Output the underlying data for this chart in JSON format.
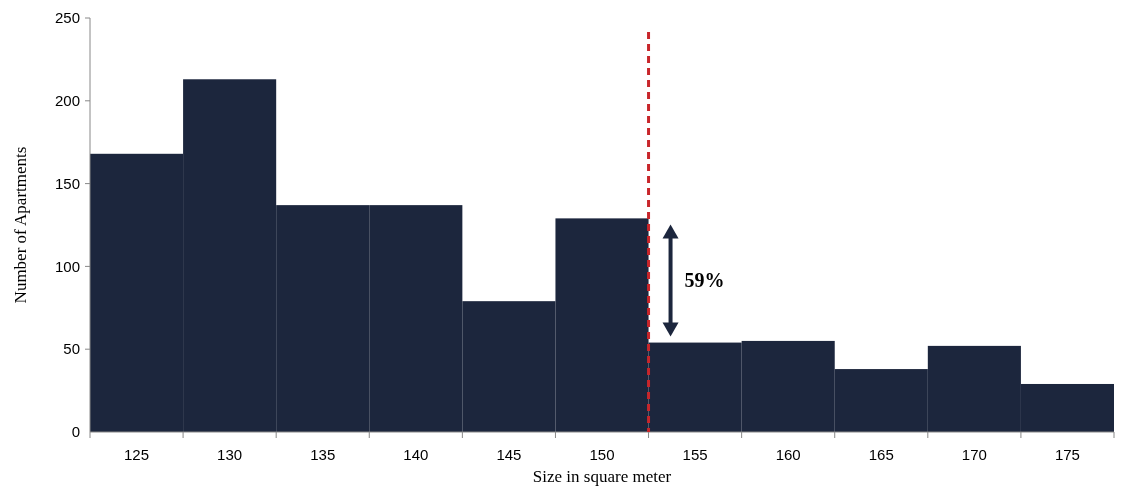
{
  "chart_data": {
    "type": "histogram",
    "xlabel": "Size in square meter",
    "ylabel": "Number of Apartments",
    "bins": [
      122.5,
      127.5,
      132.5,
      137.5,
      142.5,
      147.5,
      152.5,
      157.5,
      162.5,
      167.5,
      172.5,
      177.5
    ],
    "values": [
      168,
      213,
      137,
      137,
      79,
      129,
      54,
      55,
      38,
      52,
      29
    ],
    "color": "#1c263d",
    "xlim": [
      122.5,
      177.5
    ],
    "xticks": [
      {
        "value": 122.5,
        "label": null
      },
      125,
      {
        "value": 127.5,
        "label": null
      },
      130,
      {
        "value": 132.5,
        "label": null
      },
      135,
      {
        "value": 137.5,
        "label": null
      },
      140,
      {
        "value": 142.5,
        "label": null
      },
      145,
      {
        "value": 147.5,
        "label": null
      },
      150,
      {
        "value": 152.5,
        "label": null
      },
      155,
      {
        "value": 157.5,
        "label": null
      },
      160,
      {
        "value": 162.5,
        "label": null
      },
      165,
      {
        "value": 167.5,
        "label": null
      },
      170,
      {
        "value": 172.5,
        "label": null
      },
      175,
      {
        "value": 177.5,
        "label": null
      }
    ],
    "ylim": [
      0,
      250
    ],
    "yticks": [
      0,
      50,
      100,
      150,
      200,
      250
    ],
    "ref_lines": [
      {
        "axis": "x",
        "value": 152.5,
        "color": "#c8262b",
        "line_style": "dashed"
      }
    ],
    "annotations": [
      "59%"
    ],
    "grid": false
  }
}
